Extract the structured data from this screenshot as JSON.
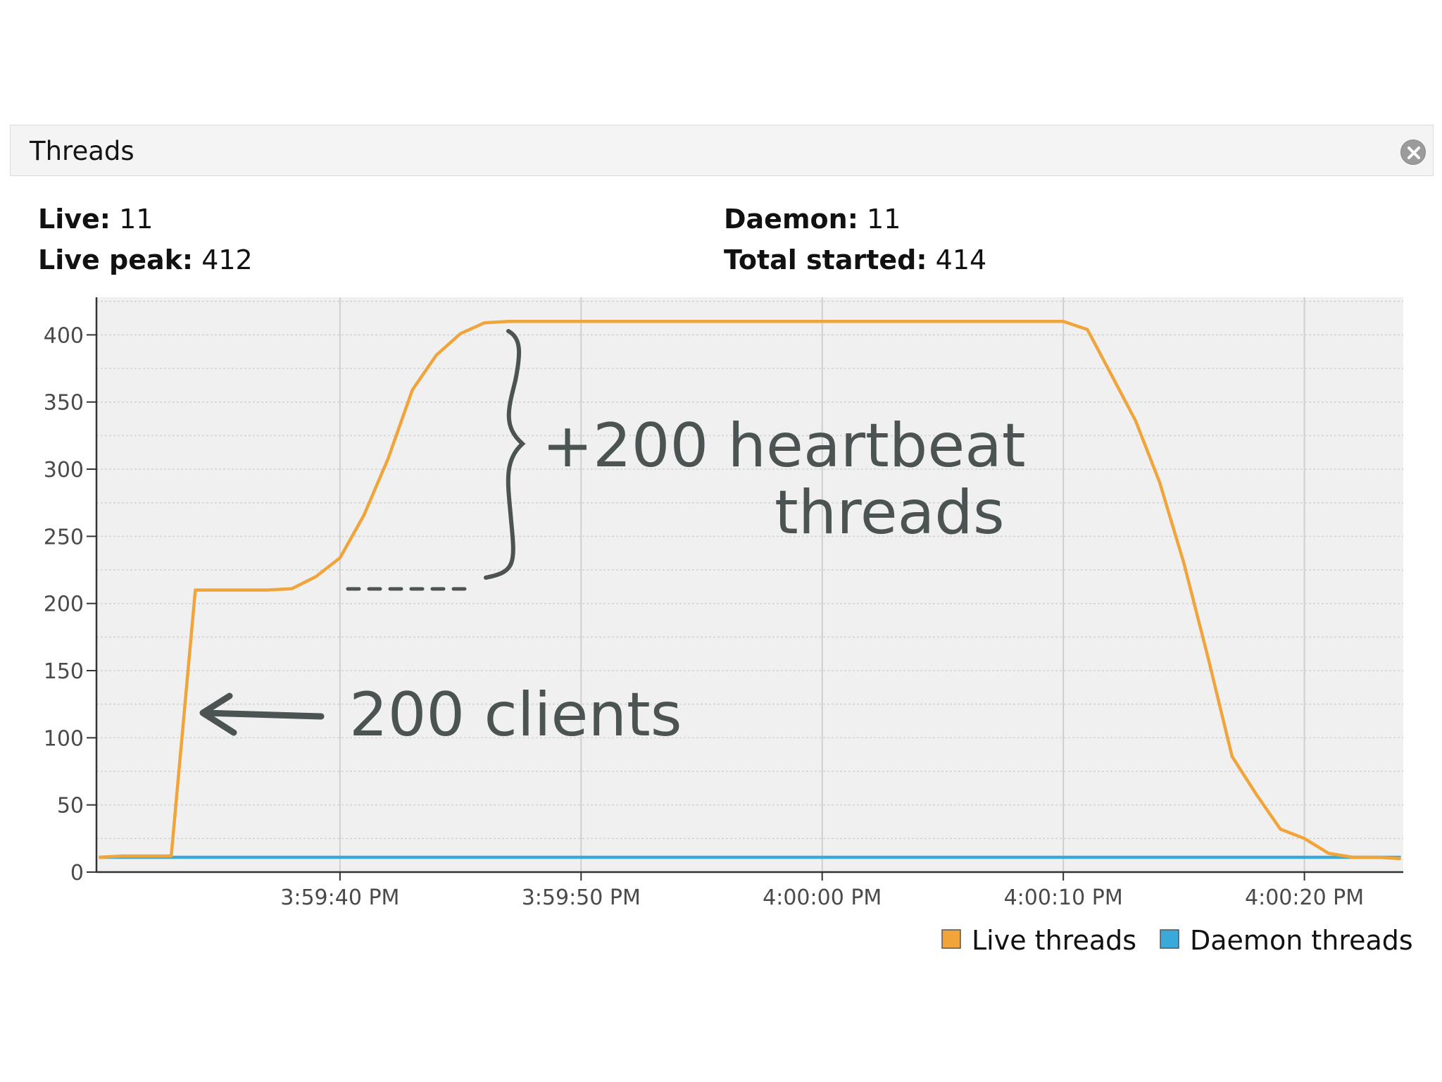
{
  "panel": {
    "title": "Threads",
    "close_icon": "close-icon"
  },
  "stats": {
    "live_label": "Live:",
    "live_value": "11",
    "live_peak_label": "Live peak:",
    "live_peak_value": "412",
    "daemon_label": "Daemon:",
    "daemon_value": "11",
    "total_started_label": "Total started:",
    "total_started_value": "414"
  },
  "colors": {
    "live": "#f0a43a",
    "daemon": "#3aa9d9",
    "annotation": "#4b5453",
    "plot_bg": "#f0f0f0"
  },
  "annotations": {
    "heartbeat_line1": "+200 heartbeat",
    "heartbeat_line2": "threads",
    "clients": "200 clients"
  },
  "chart_data": {
    "type": "line",
    "x_unit": "seconds after 3:59:30 PM",
    "x": [
      0,
      1,
      3,
      4,
      5,
      6,
      7,
      8,
      9,
      10,
      11,
      12,
      13,
      14,
      15,
      16,
      17,
      18,
      19,
      20,
      21,
      22,
      23,
      24,
      25,
      26,
      27,
      28,
      29,
      30,
      31,
      32,
      33,
      34,
      35,
      36,
      37,
      38,
      39,
      40,
      41,
      42,
      43,
      44,
      45,
      46,
      47,
      48,
      49,
      50,
      51,
      52,
      53,
      54
    ],
    "x_ticks": [
      {
        "value": 10,
        "label": "3:59:40 PM"
      },
      {
        "value": 20,
        "label": "3:59:50 PM"
      },
      {
        "value": 30,
        "label": "4:00:00 PM"
      },
      {
        "value": 40,
        "label": "4:00:10 PM"
      },
      {
        "value": 50,
        "label": "4:00:20 PM"
      }
    ],
    "xlim": [
      -0.1,
      54.1
    ],
    "ylim": [
      0,
      428
    ],
    "y_ticks": [
      0,
      50,
      100,
      150,
      200,
      250,
      300,
      350,
      400
    ],
    "grid": true,
    "legend_position": "bottom-right",
    "series": [
      {
        "name": "Live threads",
        "color": "#f0a43a",
        "values": [
          11,
          12,
          12,
          210,
          210,
          210,
          210,
          211,
          220,
          234,
          266,
          308,
          359,
          385,
          401,
          409,
          410,
          410,
          410,
          410,
          410,
          410,
          410,
          410,
          410,
          410,
          410,
          410,
          410,
          410,
          410,
          410,
          410,
          410,
          410,
          410,
          410,
          410,
          410,
          410,
          404,
          370,
          336,
          290,
          230,
          160,
          86,
          58,
          32,
          25,
          14,
          11,
          11,
          10
        ]
      },
      {
        "name": "Daemon threads",
        "color": "#3aa9d9",
        "values": [
          11,
          11,
          11,
          11,
          11,
          11,
          11,
          11,
          11,
          11,
          11,
          11,
          11,
          11,
          11,
          11,
          11,
          11,
          11,
          11,
          11,
          11,
          11,
          11,
          11,
          11,
          11,
          11,
          11,
          11,
          11,
          11,
          11,
          11,
          11,
          11,
          11,
          11,
          11,
          11,
          11,
          11,
          11,
          11,
          11,
          11,
          11,
          11,
          11,
          11,
          11,
          11,
          11,
          11
        ]
      }
    ]
  }
}
